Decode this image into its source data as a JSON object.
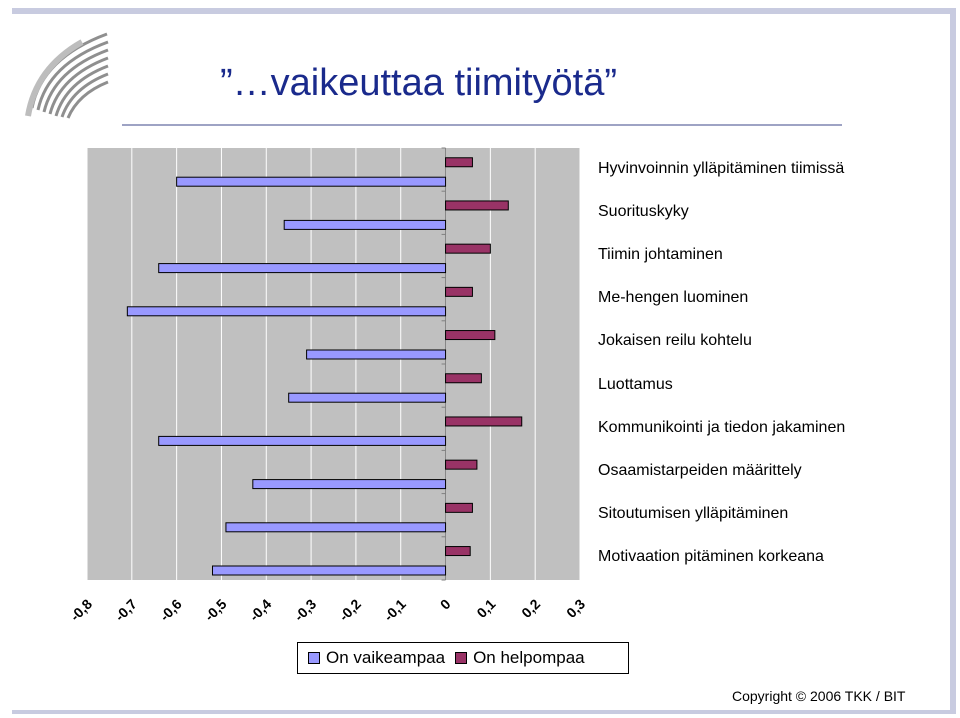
{
  "slide": {
    "title": "”…vaikeuttaa tiimityötä”",
    "footer": "Copyright © 2006 TKK / BIT"
  },
  "legend": {
    "items": [
      {
        "label": "On vaikeampaa",
        "color": "#9999ff"
      },
      {
        "label": "On helpompaa",
        "color": "#993366"
      }
    ]
  },
  "chart_data": {
    "type": "bar",
    "orientation": "horizontal",
    "categories": [
      "Hyvinvoinnin ylläpitäminen tiimissä",
      "Suorituskyky",
      "Tiimin johtaminen",
      "Me-hengen luominen",
      "Jokaisen reilu kohtelu",
      "Luottamus",
      "Kommunikointi ja tiedon jakaminen",
      "Osaamistarpeiden määrittely",
      "Sitoutumisen ylläpitäminen",
      "Motivaation pitäminen korkeana"
    ],
    "series": [
      {
        "name": "On vaikeampaa",
        "values": [
          -0.6,
          -0.36,
          -0.64,
          -0.71,
          -0.31,
          -0.35,
          -0.64,
          -0.43,
          -0.49,
          -0.52
        ]
      },
      {
        "name": "On helpompaa",
        "values": [
          0.06,
          0.14,
          0.1,
          0.06,
          0.11,
          0.08,
          0.17,
          0.07,
          0.06,
          0.055
        ]
      }
    ],
    "xlim": [
      -0.8,
      0.3
    ],
    "xticks": [
      "-0,8",
      "-0,7",
      "-0,6",
      "-0,5",
      "-0,4",
      "-0,3",
      "-0,2",
      "-0,1",
      "0",
      "0,1",
      "0,2",
      "0,3"
    ],
    "xtick_values": [
      -0.8,
      -0.7,
      -0.6,
      -0.5,
      -0.4,
      -0.3,
      -0.2,
      -0.1,
      0,
      0.1,
      0.2,
      0.3
    ],
    "grid": true,
    "legend_position": "bottom",
    "colors": {
      "plot_bg": "#c0c0c0",
      "grid": "#ffffff"
    }
  }
}
